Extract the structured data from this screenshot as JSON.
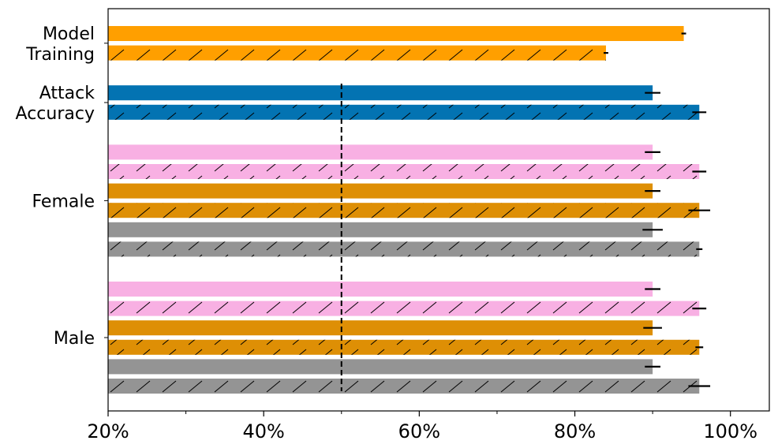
{
  "chart_data": {
    "type": "bar",
    "orientation": "horizontal",
    "xlim": [
      20,
      105
    ],
    "x_ticks": [
      20,
      40,
      60,
      80,
      100
    ],
    "x_tick_labels": [
      "20%",
      "40%",
      "60%",
      "80%",
      "100%"
    ],
    "x_minor_ticks": [
      30,
      50,
      70,
      90
    ],
    "grid": false,
    "legend": "none",
    "reference_line": {
      "x": 50,
      "style": "dashed",
      "color": "#000000"
    },
    "colors": {
      "orange": "#ff9f00",
      "blue": "#0373b2",
      "pink": "#f8b0e3",
      "dark_orange": "#de8f05",
      "gray": "#949494"
    },
    "groups": [
      {
        "label": "Model\nTraining",
        "label_lines": [
          "Model",
          "Training"
        ],
        "bars": [
          {
            "value": 94,
            "error": 0.3,
            "color": "orange",
            "hatched": false
          },
          {
            "value": 84,
            "error": 0.3,
            "color": "orange",
            "hatched": true
          }
        ]
      },
      {
        "label": "Attack\nAccuracy",
        "label_lines": [
          "Attack",
          "Accuracy"
        ],
        "bars": [
          {
            "value": 90,
            "error": 1.0,
            "color": "blue",
            "hatched": false
          },
          {
            "value": 96,
            "error": 0.9,
            "color": "blue",
            "hatched": true
          }
        ]
      },
      {
        "label": "Female",
        "label_lines": [
          "Female"
        ],
        "bars": [
          {
            "value": 90,
            "error": 1.0,
            "color": "pink",
            "hatched": false
          },
          {
            "value": 96,
            "error": 0.9,
            "color": "pink",
            "hatched": true
          },
          {
            "value": 90,
            "error": 1.0,
            "color": "dark_orange",
            "hatched": false
          },
          {
            "value": 96,
            "error": 1.4,
            "color": "dark_orange",
            "hatched": true
          },
          {
            "value": 90,
            "error": 1.3,
            "color": "gray",
            "hatched": false
          },
          {
            "value": 96,
            "error": 0.4,
            "color": "gray",
            "hatched": true
          }
        ]
      },
      {
        "label": "Male",
        "label_lines": [
          "Male"
        ],
        "bars": [
          {
            "value": 90,
            "error": 1.0,
            "color": "pink",
            "hatched": false
          },
          {
            "value": 96,
            "error": 0.9,
            "color": "pink",
            "hatched": true
          },
          {
            "value": 90,
            "error": 1.2,
            "color": "dark_orange",
            "hatched": false
          },
          {
            "value": 96,
            "error": 0.5,
            "color": "dark_orange",
            "hatched": true
          },
          {
            "value": 90,
            "error": 1.0,
            "color": "gray",
            "hatched": false
          },
          {
            "value": 96,
            "error": 1.4,
            "color": "gray",
            "hatched": true
          }
        ]
      }
    ]
  }
}
